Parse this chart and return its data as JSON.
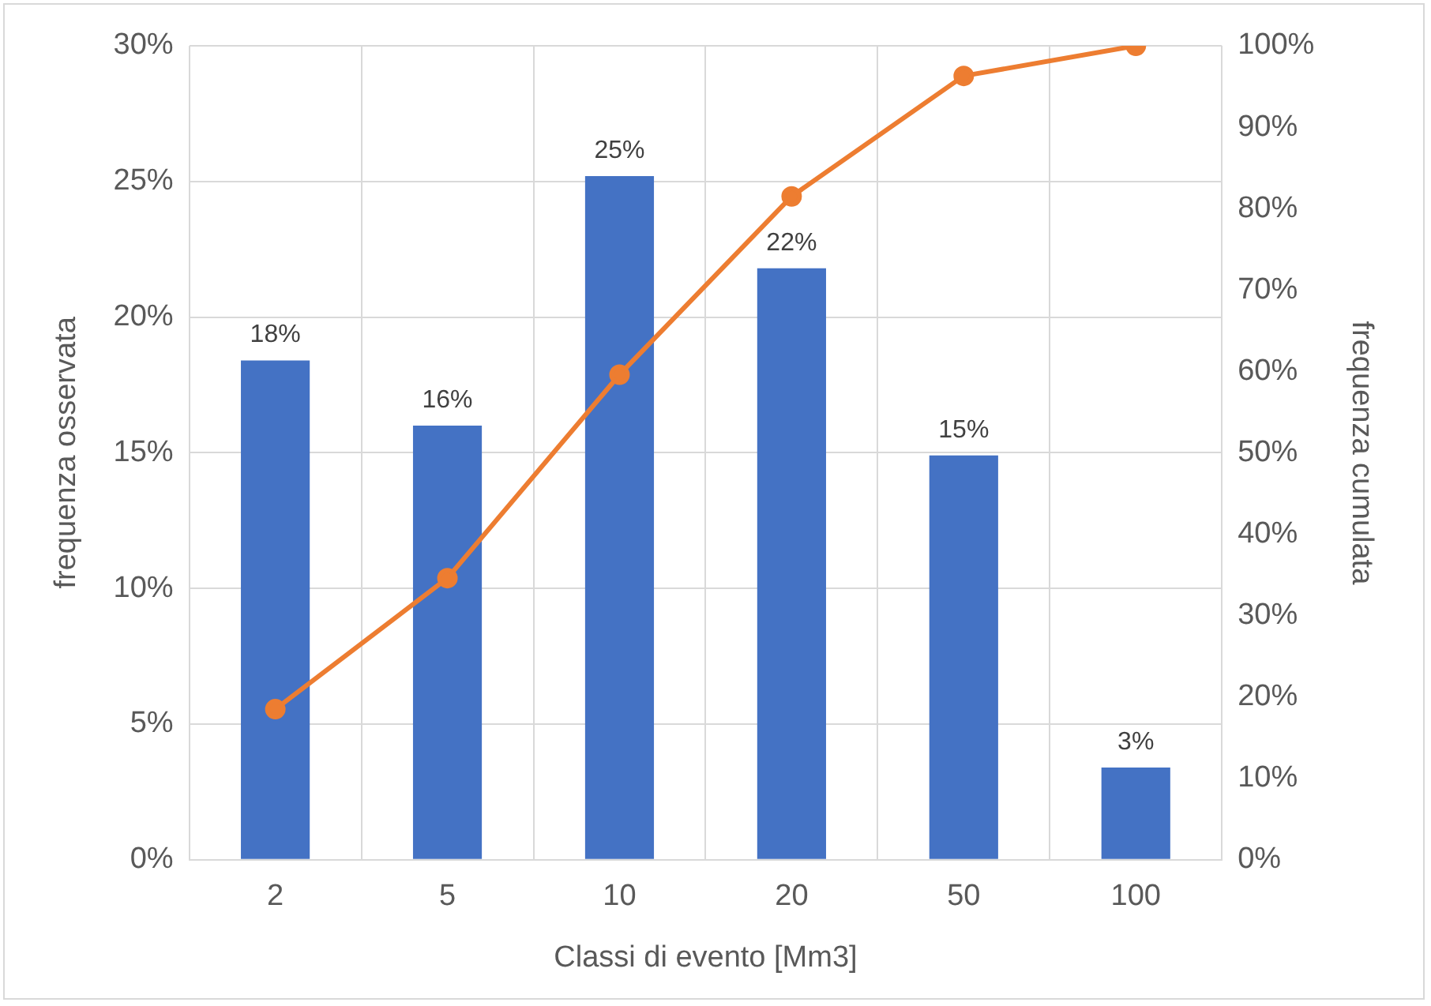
{
  "chart_data": {
    "type": "bar",
    "xlabel": "Classi di evento [Mm3]",
    "ylabel": "frequenza osservata",
    "y2label": "frequenza cumulata",
    "categories": [
      "2",
      "5",
      "10",
      "20",
      "50",
      "100"
    ],
    "series": [
      {
        "color": "#4472c4",
        "values": [
          18.4,
          16.0,
          25.2,
          21.8,
          14.9,
          3.4
        ],
        "value_labels": [
          "18%",
          "16%",
          "25%",
          "22%",
          "15%",
          "3%"
        ]
      },
      {
        "type": "line",
        "axis": "y2",
        "color": "#ed7d31",
        "values": [
          18.5,
          34.6,
          59.6,
          81.5,
          96.3,
          100
        ]
      }
    ],
    "ylim": [
      0,
      30
    ],
    "yticks": [
      {
        "value": 0,
        "label": "0%"
      },
      {
        "value": 5,
        "label": "5%"
      },
      {
        "value": 10,
        "label": "10%"
      },
      {
        "value": 15,
        "label": "15%"
      },
      {
        "value": 20,
        "label": "20%"
      },
      {
        "value": 25,
        "label": "25%"
      },
      {
        "value": 30,
        "label": "30%"
      }
    ],
    "y2lim": [
      0,
      100
    ],
    "y2ticks": [
      {
        "value": 0,
        "label": "0%"
      },
      {
        "value": 10,
        "label": "10%"
      },
      {
        "value": 20,
        "label": "20%"
      },
      {
        "value": 30,
        "label": "30%"
      },
      {
        "value": 40,
        "label": "40%"
      },
      {
        "value": 50,
        "label": "50%"
      },
      {
        "value": 60,
        "label": "60%"
      },
      {
        "value": 70,
        "label": "70%"
      },
      {
        "value": 80,
        "label": "80%"
      },
      {
        "value": 90,
        "label": "90%"
      },
      {
        "value": 100,
        "label": "100%"
      }
    ],
    "grid": true,
    "legend": false,
    "marker": "circle",
    "line_style": "solid"
  }
}
